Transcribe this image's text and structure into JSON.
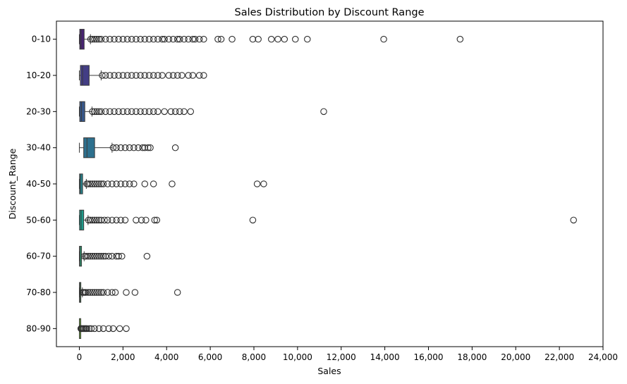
{
  "chart_data": {
    "type": "box",
    "orientation": "horizontal",
    "title": "Sales Distribution by Discount Range",
    "xlabel": "Sales",
    "ylabel": "Discount_Range",
    "xlim": [
      -1050,
      24000
    ],
    "xticks": [
      0,
      2000,
      4000,
      6000,
      8000,
      10000,
      12000,
      14000,
      16000,
      18000,
      20000,
      22000,
      24000
    ],
    "xtick_labels": [
      "0",
      "2,000",
      "4,000",
      "6,000",
      "8,000",
      "10,000",
      "12,000",
      "14,000",
      "16,000",
      "18,000",
      "20,000",
      "22,000",
      "24,000"
    ],
    "grid": false,
    "categories": [
      "0-10",
      "10-20",
      "20-30",
      "30-40",
      "40-50",
      "50-60",
      "60-70",
      "70-80",
      "80-90"
    ],
    "colors": [
      "#482374",
      "#433e85",
      "#38588c",
      "#2d708e",
      "#25858e",
      "#1e9b8a",
      "#2ab07f",
      "#52c569",
      "#86d549"
    ],
    "boxes": [
      {
        "category": "0-10",
        "whisker_low": 0,
        "q1": 20,
        "median": 80,
        "q3": 220,
        "whisker_high": 510,
        "outliers": [
          520,
          600,
          700,
          800,
          900,
          1000,
          1200,
          1400,
          1600,
          1800,
          2000,
          2200,
          2400,
          2600,
          2800,
          3000,
          3200,
          3400,
          3600,
          3800,
          3900,
          4100,
          4300,
          4500,
          4600,
          4800,
          5000,
          5200,
          5300,
          5500,
          5700,
          6350,
          6500,
          7000,
          7950,
          8200,
          8800,
          9100,
          9400,
          9900,
          10450,
          13950,
          17450
        ]
      },
      {
        "category": "10-20",
        "whisker_low": 0,
        "q1": 50,
        "median": 150,
        "q3": 450,
        "whisker_high": 1000,
        "outliers": [
          1050,
          1200,
          1400,
          1600,
          1800,
          2000,
          2200,
          2400,
          2600,
          2800,
          3000,
          3200,
          3400,
          3600,
          3800,
          4100,
          4300,
          4500,
          4700,
          5000,
          5200,
          5500,
          5700
        ]
      },
      {
        "category": "20-30",
        "whisker_low": 0,
        "q1": 20,
        "median": 100,
        "q3": 250,
        "whisker_high": 580,
        "outliers": [
          600,
          700,
          800,
          900,
          1000,
          1200,
          1400,
          1600,
          1800,
          2000,
          2200,
          2400,
          2600,
          2800,
          3000,
          3200,
          3400,
          3600,
          3900,
          4200,
          4400,
          4600,
          4800,
          5100,
          11200
        ]
      },
      {
        "category": "30-40",
        "whisker_low": 0,
        "q1": 200,
        "median": 350,
        "q3": 700,
        "whisker_high": 1500,
        "outliers": [
          1550,
          1700,
          1900,
          2100,
          2300,
          2500,
          2700,
          2900,
          3000,
          3150,
          3250,
          4400
        ]
      },
      {
        "category": "40-50",
        "whisker_low": 0,
        "q1": 10,
        "median": 50,
        "q3": 150,
        "whisker_high": 320,
        "outliers": [
          340,
          400,
          500,
          600,
          700,
          800,
          900,
          1000,
          1100,
          1300,
          1500,
          1700,
          1900,
          2100,
          2300,
          2500,
          3000,
          3400,
          4250,
          8150,
          8450
        ]
      },
      {
        "category": "50-60",
        "whisker_low": 0,
        "q1": 10,
        "median": 80,
        "q3": 200,
        "whisker_high": 400,
        "outliers": [
          420,
          500,
          600,
          700,
          800,
          900,
          1000,
          1150,
          1300,
          1500,
          1700,
          1900,
          2100,
          2600,
          2850,
          3050,
          3450,
          3550,
          7950,
          22650
        ]
      },
      {
        "category": "60-70",
        "whisker_low": 0,
        "q1": 5,
        "median": 40,
        "q3": 100,
        "whisker_high": 220,
        "outliers": [
          230,
          300,
          400,
          500,
          600,
          700,
          800,
          900,
          1000,
          1100,
          1200,
          1350,
          1500,
          1700,
          1800,
          1950,
          3100
        ]
      },
      {
        "category": "70-80",
        "whisker_low": 0,
        "q1": 5,
        "median": 30,
        "q3": 60,
        "whisker_high": 140,
        "outliers": [
          150,
          200,
          250,
          300,
          400,
          500,
          600,
          700,
          800,
          900,
          1000,
          1100,
          1300,
          1500,
          1650,
          2150,
          2550,
          4500
        ]
      },
      {
        "category": "80-90",
        "whisker_low": 0,
        "q1": 2,
        "median": 10,
        "q3": 25,
        "whisker_high": 60,
        "outliers": [
          70,
          100,
          150,
          200,
          250,
          300,
          350,
          450,
          550,
          700,
          900,
          1100,
          1350,
          1550,
          1850,
          2150
        ]
      }
    ]
  }
}
